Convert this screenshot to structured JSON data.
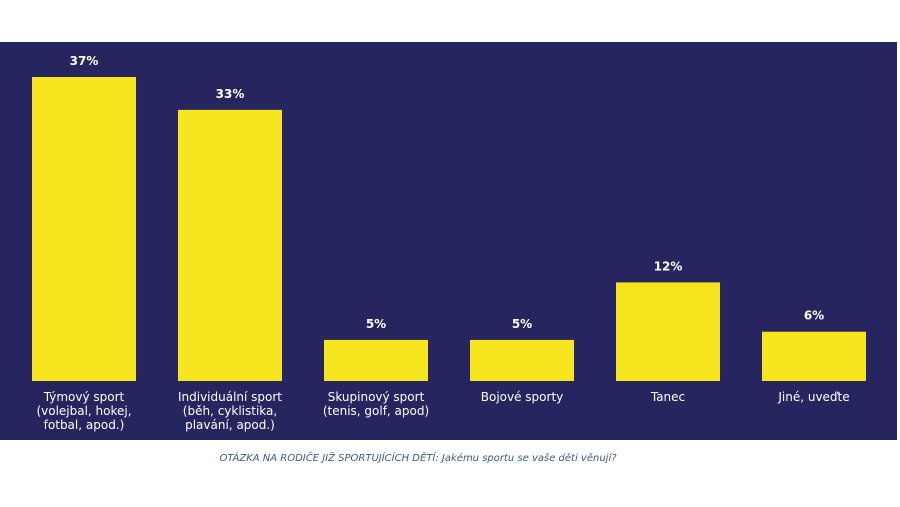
{
  "chart_data": {
    "type": "bar",
    "categories": [
      "Týmový sport (volejbal, hokej, fotbal, apod.)",
      "Individuální sport (běh, cyklistika, plavání, apod.)",
      "Skupinový sport (tenis, golf, apod)",
      "Bojové sporty",
      "Tanec",
      "Jiné, uveďte"
    ],
    "values": [
      37,
      33,
      5,
      5,
      12,
      6
    ],
    "value_labels": [
      "37%",
      "33%",
      "5%",
      "5%",
      "12%",
      "6%"
    ],
    "color": "#f6e41c",
    "caption": "OTÁZKA NA RODIČE JIŽ SPORTUJÍCÍCH DĚTÍ: Jakému sportu se vaše děti věnují?"
  }
}
